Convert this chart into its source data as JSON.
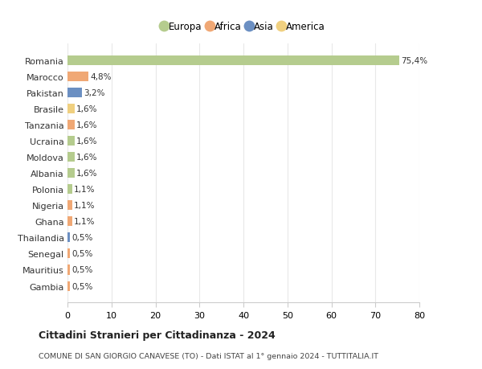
{
  "countries": [
    "Romania",
    "Marocco",
    "Pakistan",
    "Brasile",
    "Tanzania",
    "Ucraina",
    "Moldova",
    "Albania",
    "Polonia",
    "Nigeria",
    "Ghana",
    "Thailandia",
    "Senegal",
    "Mauritius",
    "Gambia"
  ],
  "values": [
    75.4,
    4.8,
    3.2,
    1.6,
    1.6,
    1.6,
    1.6,
    1.6,
    1.1,
    1.1,
    1.1,
    0.5,
    0.5,
    0.5,
    0.5
  ],
  "labels": [
    "75,4%",
    "4,8%",
    "3,2%",
    "1,6%",
    "1,6%",
    "1,6%",
    "1,6%",
    "1,6%",
    "1,1%",
    "1,1%",
    "1,1%",
    "0,5%",
    "0,5%",
    "0,5%",
    "0,5%"
  ],
  "colors": [
    "#b5cc8e",
    "#f0a875",
    "#6b8fc2",
    "#f0d080",
    "#f0a875",
    "#b5cc8e",
    "#b5cc8e",
    "#b5cc8e",
    "#b5cc8e",
    "#f0a875",
    "#f0a875",
    "#6b8fc2",
    "#f0a875",
    "#f0a875",
    "#f0a875"
  ],
  "legend_labels": [
    "Europa",
    "Africa",
    "Asia",
    "America"
  ],
  "legend_colors": [
    "#b5cc8e",
    "#f0a875",
    "#6b8fc2",
    "#f0d080"
  ],
  "title": "Cittadini Stranieri per Cittadinanza - 2024",
  "subtitle": "COMUNE DI SAN GIORGIO CANAVESE (TO) - Dati ISTAT al 1° gennaio 2024 - TUTTITALIA.IT",
  "xlim": [
    0,
    80
  ],
  "xticks": [
    0,
    10,
    20,
    30,
    40,
    50,
    60,
    70,
    80
  ],
  "bg_color": "#ffffff",
  "grid_color": "#e8e8e8"
}
